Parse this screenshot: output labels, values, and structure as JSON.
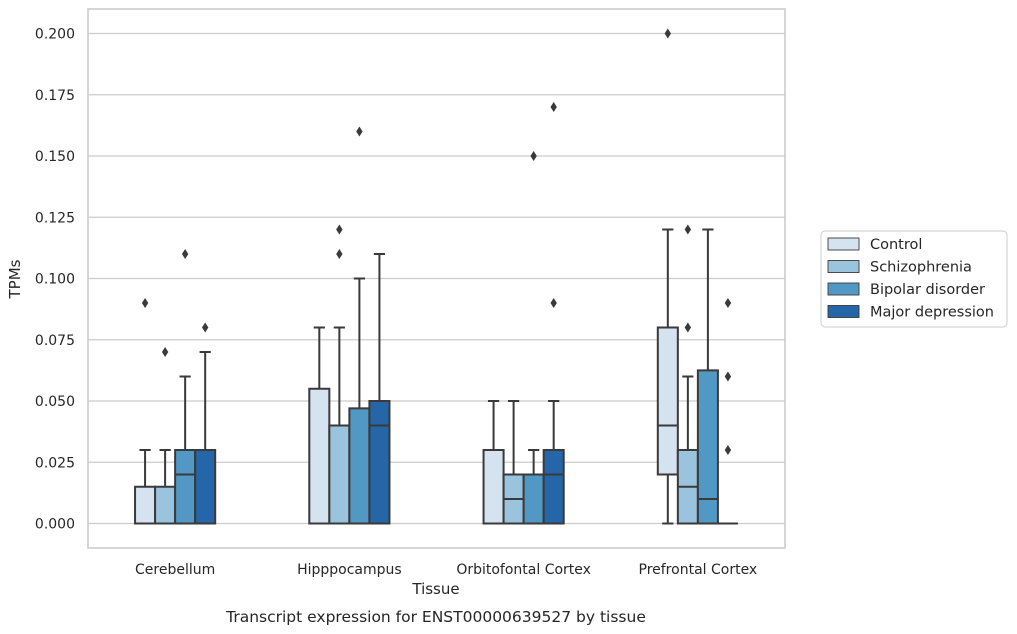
{
  "chart_data": {
    "type": "box",
    "xlabel": "Tissue",
    "ylabel": "TPMs",
    "caption": "Transcript expression for ENST00000639527 by tissue",
    "ylim": [
      -0.01,
      0.21
    ],
    "yticks": [
      "0.000",
      "0.025",
      "0.050",
      "0.075",
      "0.100",
      "0.125",
      "0.150",
      "0.175",
      "0.200"
    ],
    "grid": "horizontal",
    "legend_position": "right",
    "categories": [
      "Cerebellum",
      "Hipppocampus",
      "Orbitofontal Cortex",
      "Prefrontal Cortex"
    ],
    "series": [
      {
        "name": "Control",
        "color": "#d5e2f0",
        "boxes": [
          {
            "q1": 0.0,
            "median": 0.0,
            "q3": 0.015,
            "whisker_low": 0.0,
            "whisker_high": 0.03,
            "outliers": [
              0.09
            ]
          },
          {
            "q1": 0.0,
            "median": 0.0,
            "q3": 0.055,
            "whisker_low": 0.0,
            "whisker_high": 0.08,
            "outliers": []
          },
          {
            "q1": 0.0,
            "median": 0.0,
            "q3": 0.03,
            "whisker_low": 0.0,
            "whisker_high": 0.05,
            "outliers": []
          },
          {
            "q1": 0.02,
            "median": 0.04,
            "q3": 0.08,
            "whisker_low": 0.0,
            "whisker_high": 0.12,
            "outliers": [
              0.2
            ]
          }
        ]
      },
      {
        "name": "Schizophrenia",
        "color": "#9ac4de",
        "boxes": [
          {
            "q1": 0.0,
            "median": 0.0,
            "q3": 0.015,
            "whisker_low": 0.0,
            "whisker_high": 0.03,
            "outliers": [
              0.07
            ]
          },
          {
            "q1": 0.0,
            "median": 0.0,
            "q3": 0.04,
            "whisker_low": 0.0,
            "whisker_high": 0.08,
            "outliers": [
              0.11,
              0.12
            ]
          },
          {
            "q1": 0.0,
            "median": 0.01,
            "q3": 0.02,
            "whisker_low": 0.0,
            "whisker_high": 0.05,
            "outliers": []
          },
          {
            "q1": 0.0,
            "median": 0.015,
            "q3": 0.03,
            "whisker_low": 0.0,
            "whisker_high": 0.06,
            "outliers": [
              0.08,
              0.12
            ]
          }
        ]
      },
      {
        "name": "Bipolar disorder",
        "color": "#5198c5",
        "boxes": [
          {
            "q1": 0.0,
            "median": 0.02,
            "q3": 0.03,
            "whisker_low": 0.0,
            "whisker_high": 0.06,
            "outliers": [
              0.11
            ]
          },
          {
            "q1": 0.0,
            "median": 0.0,
            "q3": 0.047,
            "whisker_low": 0.0,
            "whisker_high": 0.1,
            "outliers": [
              0.16
            ]
          },
          {
            "q1": 0.0,
            "median": 0.0,
            "q3": 0.02,
            "whisker_low": 0.0,
            "whisker_high": 0.03,
            "outliers": [
              0.15
            ]
          },
          {
            "q1": 0.0,
            "median": 0.01,
            "q3": 0.0625,
            "whisker_low": 0.0,
            "whisker_high": 0.12,
            "outliers": []
          }
        ]
      },
      {
        "name": "Major depression",
        "color": "#2566a8",
        "boxes": [
          {
            "q1": 0.0,
            "median": 0.0,
            "q3": 0.03,
            "whisker_low": 0.0,
            "whisker_high": 0.07,
            "outliers": [
              0.08
            ]
          },
          {
            "q1": 0.0,
            "median": 0.04,
            "q3": 0.05,
            "whisker_low": 0.0,
            "whisker_high": 0.11,
            "outliers": []
          },
          {
            "q1": 0.0,
            "median": 0.02,
            "q3": 0.03,
            "whisker_low": 0.0,
            "whisker_high": 0.05,
            "outliers": [
              0.09,
              0.17
            ]
          },
          {
            "q1": 0.0,
            "median": 0.0,
            "q3": 0.0,
            "whisker_low": 0.0,
            "whisker_high": 0.0,
            "outliers": [
              0.03,
              0.06,
              0.09
            ]
          }
        ]
      }
    ]
  }
}
